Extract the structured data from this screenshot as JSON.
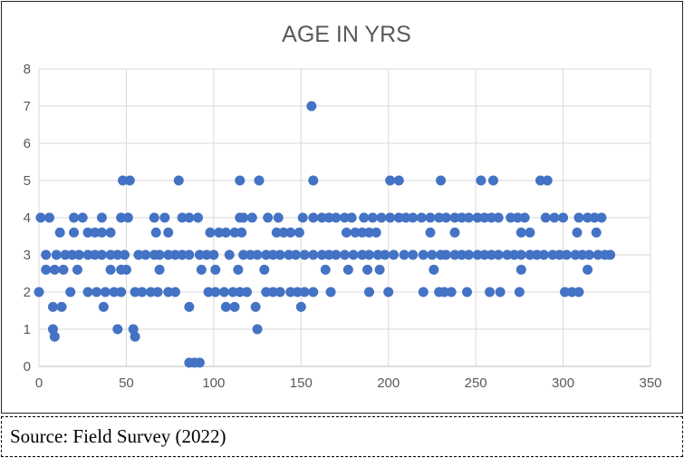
{
  "title": "AGE IN YRS",
  "source_note": "Source: Field Survey (2022)",
  "chart_data": {
    "type": "scatter",
    "title": "AGE IN YRS",
    "xlabel": "",
    "ylabel": "",
    "xlim": [
      0,
      350
    ],
    "ylim": [
      0,
      8
    ],
    "x_ticks": [
      0,
      50,
      100,
      150,
      200,
      250,
      300,
      350
    ],
    "y_ticks": [
      0,
      1,
      2,
      3,
      4,
      5,
      6,
      7,
      8
    ],
    "grid": true,
    "legend": false,
    "marker_color": "#4472C4",
    "gridline_color": "#D9D9D9",
    "axis_line_color": "#BFBFBF",
    "axis_label_color": "#595959",
    "title_color": "#595959",
    "points": [
      [
        156,
        7
      ],
      [
        48,
        5
      ],
      [
        52,
        5
      ],
      [
        80,
        5
      ],
      [
        115,
        5
      ],
      [
        126,
        5
      ],
      [
        157,
        5
      ],
      [
        201,
        5
      ],
      [
        206,
        5
      ],
      [
        230,
        5
      ],
      [
        253,
        5
      ],
      [
        260,
        5
      ],
      [
        287,
        5
      ],
      [
        291,
        5
      ],
      [
        1,
        4
      ],
      [
        6,
        4
      ],
      [
        20,
        4
      ],
      [
        25,
        4
      ],
      [
        36,
        4
      ],
      [
        47,
        4
      ],
      [
        51,
        4
      ],
      [
        66,
        4
      ],
      [
        72,
        4
      ],
      [
        82,
        4
      ],
      [
        86,
        4
      ],
      [
        91,
        4
      ],
      [
        115,
        4
      ],
      [
        117,
        4
      ],
      [
        122,
        4
      ],
      [
        131,
        4
      ],
      [
        137,
        4
      ],
      [
        151,
        4
      ],
      [
        157,
        4
      ],
      [
        162,
        4
      ],
      [
        166,
        4
      ],
      [
        170,
        4
      ],
      [
        175,
        4
      ],
      [
        179,
        4
      ],
      [
        186,
        4
      ],
      [
        191,
        4
      ],
      [
        196,
        4
      ],
      [
        201,
        4
      ],
      [
        206,
        4
      ],
      [
        210,
        4
      ],
      [
        214,
        4
      ],
      [
        219,
        4
      ],
      [
        224,
        4
      ],
      [
        229,
        4
      ],
      [
        233,
        4
      ],
      [
        238,
        4
      ],
      [
        242,
        4
      ],
      [
        246,
        4
      ],
      [
        251,
        4
      ],
      [
        255,
        4
      ],
      [
        259,
        4
      ],
      [
        263,
        4
      ],
      [
        270,
        4
      ],
      [
        274,
        4
      ],
      [
        278,
        4
      ],
      [
        290,
        4
      ],
      [
        295,
        4
      ],
      [
        300,
        4
      ],
      [
        309,
        4
      ],
      [
        314,
        4
      ],
      [
        318,
        4
      ],
      [
        322,
        4
      ],
      [
        12,
        3.6
      ],
      [
        20,
        3.6
      ],
      [
        28,
        3.6
      ],
      [
        32,
        3.6
      ],
      [
        36,
        3.6
      ],
      [
        41,
        3.6
      ],
      [
        67,
        3.6
      ],
      [
        74,
        3.6
      ],
      [
        98,
        3.6
      ],
      [
        103,
        3.6
      ],
      [
        107,
        3.6
      ],
      [
        112,
        3.6
      ],
      [
        116,
        3.6
      ],
      [
        136,
        3.6
      ],
      [
        140,
        3.6
      ],
      [
        144,
        3.6
      ],
      [
        149,
        3.6
      ],
      [
        176,
        3.6
      ],
      [
        181,
        3.6
      ],
      [
        185,
        3.6
      ],
      [
        189,
        3.6
      ],
      [
        193,
        3.6
      ],
      [
        224,
        3.6
      ],
      [
        238,
        3.6
      ],
      [
        276,
        3.6
      ],
      [
        281,
        3.6
      ],
      [
        308,
        3.6
      ],
      [
        319,
        3.6
      ],
      [
        4,
        3
      ],
      [
        10,
        3
      ],
      [
        15,
        3
      ],
      [
        19,
        3
      ],
      [
        23,
        3
      ],
      [
        28,
        3
      ],
      [
        32,
        3
      ],
      [
        36,
        3
      ],
      [
        41,
        3
      ],
      [
        45,
        3
      ],
      [
        49,
        3
      ],
      [
        57,
        3
      ],
      [
        61,
        3
      ],
      [
        66,
        3
      ],
      [
        69,
        3
      ],
      [
        74,
        3
      ],
      [
        78,
        3
      ],
      [
        82,
        3
      ],
      [
        86,
        3
      ],
      [
        92,
        3
      ],
      [
        96,
        3
      ],
      [
        100,
        3
      ],
      [
        109,
        3
      ],
      [
        117,
        3
      ],
      [
        121,
        3
      ],
      [
        125,
        3
      ],
      [
        130,
        3
      ],
      [
        134,
        3
      ],
      [
        138,
        3
      ],
      [
        143,
        3
      ],
      [
        147,
        3
      ],
      [
        152,
        3
      ],
      [
        157,
        3
      ],
      [
        162,
        3
      ],
      [
        166,
        3
      ],
      [
        170,
        3
      ],
      [
        175,
        3
      ],
      [
        180,
        3
      ],
      [
        185,
        3
      ],
      [
        189,
        3
      ],
      [
        194,
        3
      ],
      [
        198,
        3
      ],
      [
        203,
        3
      ],
      [
        209,
        3
      ],
      [
        214,
        3
      ],
      [
        220,
        3
      ],
      [
        225,
        3
      ],
      [
        230,
        3
      ],
      [
        233,
        3
      ],
      [
        238,
        3
      ],
      [
        242,
        3
      ],
      [
        246,
        3
      ],
      [
        251,
        3
      ],
      [
        255,
        3
      ],
      [
        259,
        3
      ],
      [
        263,
        3
      ],
      [
        268,
        3
      ],
      [
        272,
        3
      ],
      [
        276,
        3
      ],
      [
        281,
        3
      ],
      [
        285,
        3
      ],
      [
        289,
        3
      ],
      [
        294,
        3
      ],
      [
        298,
        3
      ],
      [
        302,
        3
      ],
      [
        307,
        3
      ],
      [
        311,
        3
      ],
      [
        315,
        3
      ],
      [
        320,
        3
      ],
      [
        324,
        3
      ],
      [
        327,
        3
      ],
      [
        4,
        2.6
      ],
      [
        9,
        2.6
      ],
      [
        14,
        2.6
      ],
      [
        22,
        2.6
      ],
      [
        41,
        2.6
      ],
      [
        47,
        2.6
      ],
      [
        50,
        2.6
      ],
      [
        69,
        2.6
      ],
      [
        93,
        2.6
      ],
      [
        101,
        2.6
      ],
      [
        114,
        2.6
      ],
      [
        129,
        2.6
      ],
      [
        164,
        2.6
      ],
      [
        177,
        2.6
      ],
      [
        188,
        2.6
      ],
      [
        195,
        2.6
      ],
      [
        226,
        2.6
      ],
      [
        276,
        2.6
      ],
      [
        314,
        2.6
      ],
      [
        0,
        2
      ],
      [
        18,
        2
      ],
      [
        28,
        2
      ],
      [
        33,
        2
      ],
      [
        38,
        2
      ],
      [
        43,
        2
      ],
      [
        47,
        2
      ],
      [
        55,
        2
      ],
      [
        59,
        2
      ],
      [
        64,
        2
      ],
      [
        68,
        2
      ],
      [
        74,
        2
      ],
      [
        78,
        2
      ],
      [
        97,
        2
      ],
      [
        101,
        2
      ],
      [
        106,
        2
      ],
      [
        111,
        2
      ],
      [
        115,
        2
      ],
      [
        119,
        2
      ],
      [
        130,
        2
      ],
      [
        134,
        2
      ],
      [
        138,
        2
      ],
      [
        144,
        2
      ],
      [
        148,
        2
      ],
      [
        152,
        2
      ],
      [
        157,
        2
      ],
      [
        167,
        2
      ],
      [
        189,
        2
      ],
      [
        200,
        2
      ],
      [
        220,
        2
      ],
      [
        229,
        2
      ],
      [
        232,
        2
      ],
      [
        236,
        2
      ],
      [
        245,
        2
      ],
      [
        258,
        2
      ],
      [
        264,
        2
      ],
      [
        275,
        2
      ],
      [
        301,
        2
      ],
      [
        305,
        2
      ],
      [
        309,
        2
      ],
      [
        8,
        1.6
      ],
      [
        13,
        1.6
      ],
      [
        37,
        1.6
      ],
      [
        86,
        1.6
      ],
      [
        107,
        1.6
      ],
      [
        112,
        1.6
      ],
      [
        124,
        1.6
      ],
      [
        150,
        1.6
      ],
      [
        8,
        1
      ],
      [
        45,
        1
      ],
      [
        54,
        1
      ],
      [
        125,
        1
      ],
      [
        9,
        0.8
      ],
      [
        55,
        0.8
      ],
      [
        86,
        0.1
      ],
      [
        89,
        0.1
      ],
      [
        92,
        0.1
      ]
    ]
  }
}
